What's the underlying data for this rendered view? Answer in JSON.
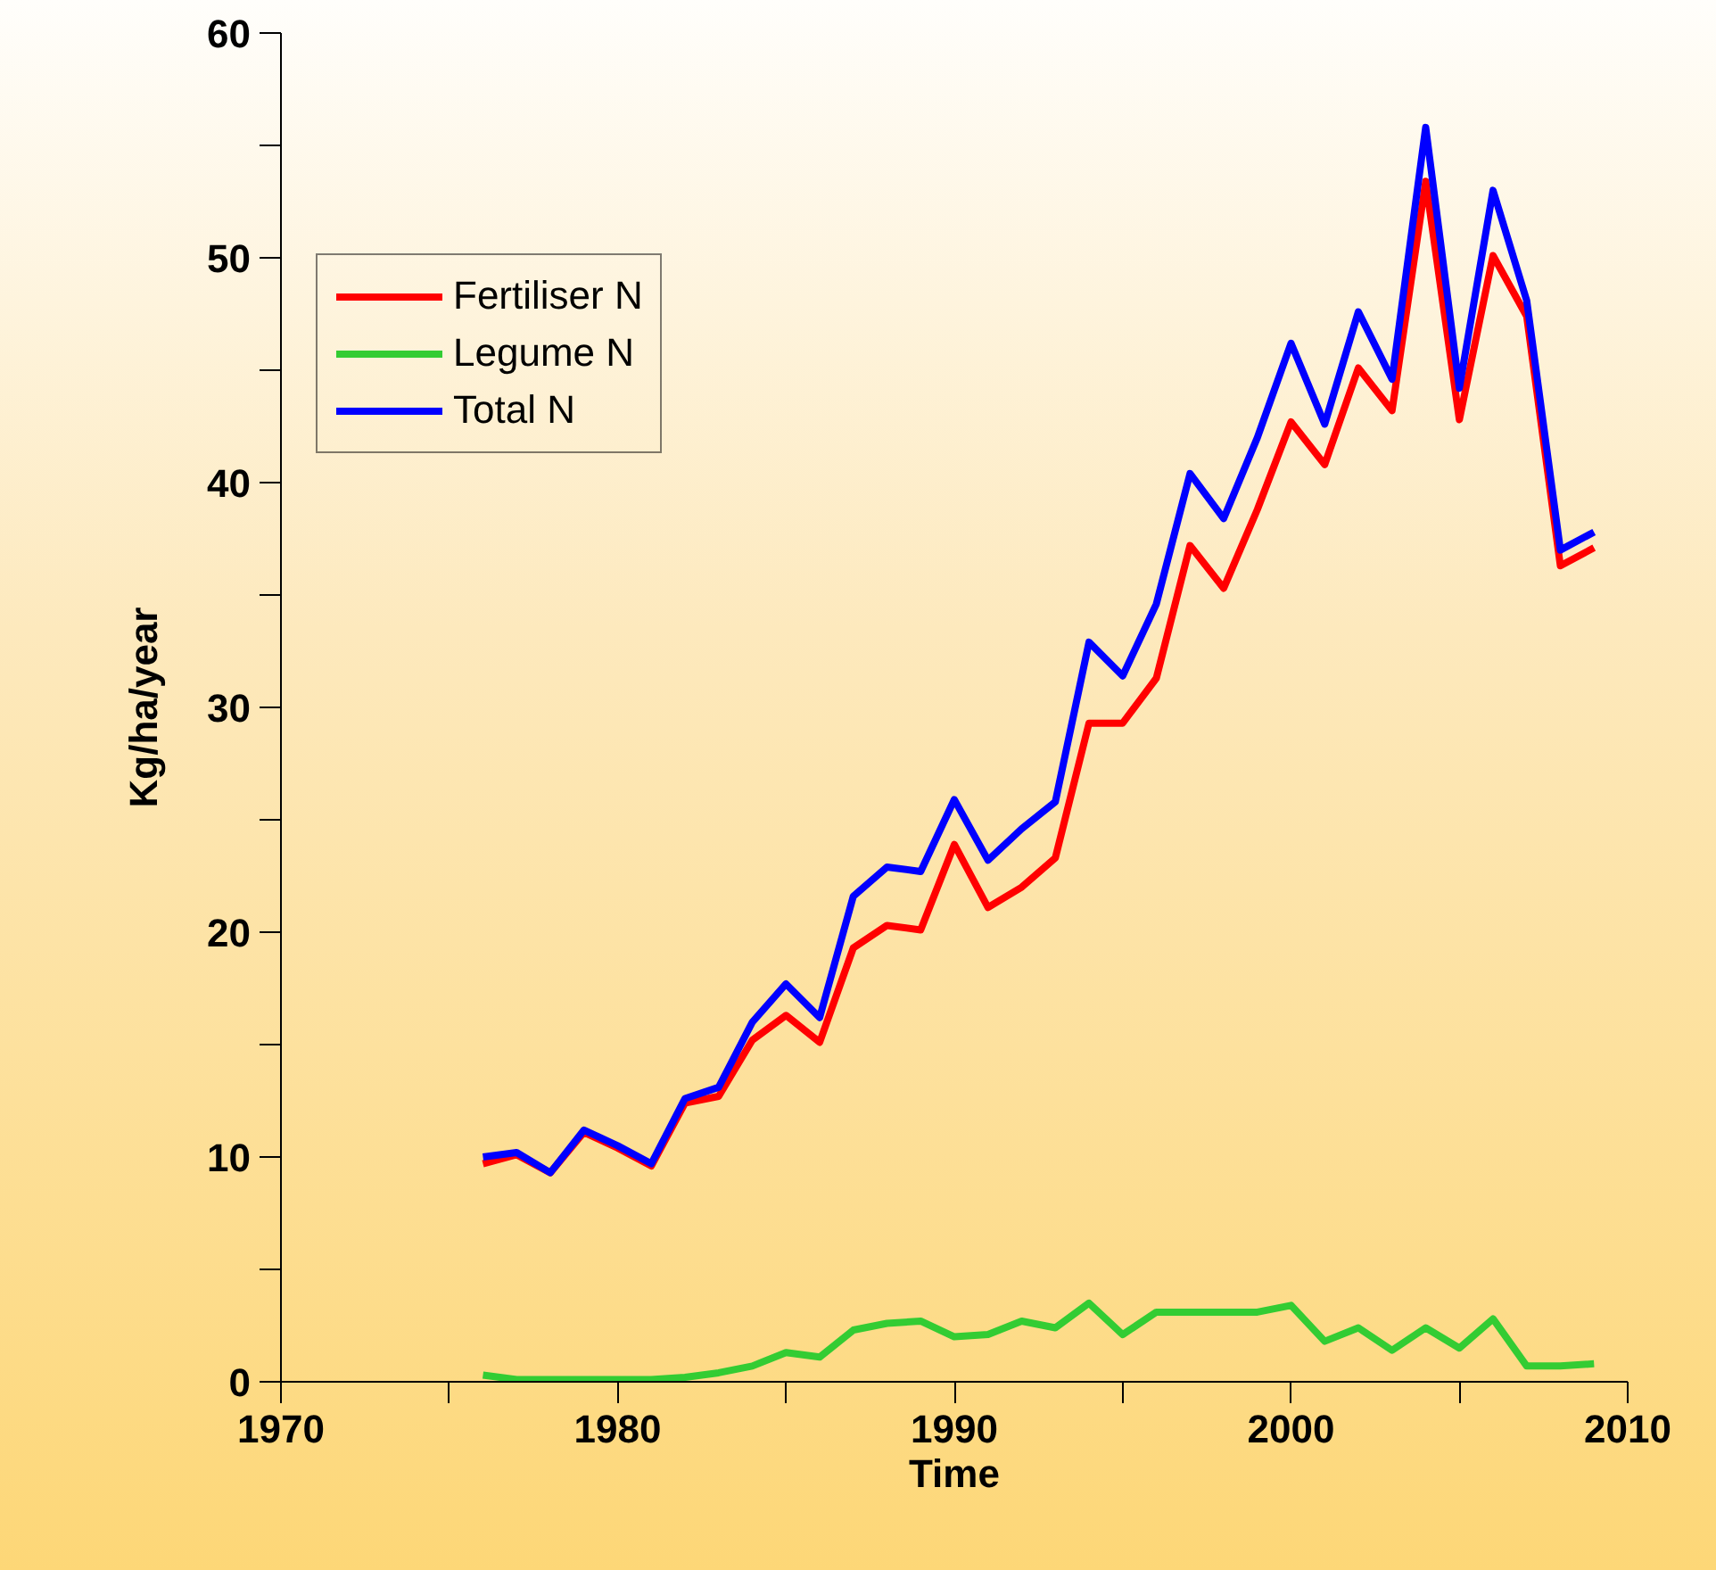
{
  "chart_data": {
    "type": "line",
    "xlabel": "Time",
    "ylabel": "Kg/ha/year",
    "x": [
      1976,
      1977,
      1978,
      1979,
      1980,
      1981,
      1982,
      1983,
      1984,
      1985,
      1986,
      1987,
      1988,
      1989,
      1990,
      1991,
      1992,
      1993,
      1994,
      1995,
      1996,
      1997,
      1998,
      1999,
      2000,
      2001,
      2002,
      2003,
      2004,
      2005,
      2006,
      2007,
      2008,
      2009
    ],
    "series": [
      {
        "name": "Fertiliser N",
        "color": "#ff0000",
        "values": [
          9.7,
          10.1,
          9.3,
          11.1,
          10.4,
          9.6,
          12.4,
          12.7,
          15.2,
          16.3,
          15.1,
          19.3,
          20.3,
          20.1,
          23.9,
          21.1,
          22.0,
          23.3,
          29.3,
          29.3,
          31.3,
          37.2,
          35.3,
          38.8,
          42.7,
          40.8,
          45.1,
          43.2,
          53.4,
          42.8,
          50.1,
          47.4,
          36.3,
          37.1
        ]
      },
      {
        "name": "Legume N",
        "color": "#33cc33",
        "values": [
          0.3,
          0.1,
          0.1,
          0.1,
          0.1,
          0.1,
          0.2,
          0.4,
          0.7,
          1.3,
          1.1,
          2.3,
          2.6,
          2.7,
          2.0,
          2.1,
          2.7,
          2.4,
          3.5,
          2.1,
          3.1,
          3.1,
          3.1,
          3.1,
          3.4,
          1.8,
          2.4,
          1.4,
          2.4,
          1.5,
          2.8,
          0.7,
          0.7,
          0.8
        ]
      },
      {
        "name": "Total N",
        "color": "#0000ff",
        "values": [
          10.0,
          10.2,
          9.3,
          11.2,
          10.5,
          9.7,
          12.6,
          13.1,
          16.0,
          17.7,
          16.2,
          21.6,
          22.9,
          22.7,
          25.9,
          23.2,
          24.6,
          25.8,
          32.9,
          31.4,
          34.6,
          40.4,
          38.4,
          42.0,
          46.2,
          42.6,
          47.6,
          44.6,
          55.8,
          44.2,
          53.0,
          48.1,
          37.0,
          37.8
        ]
      }
    ],
    "xlim": [
      1970,
      2010
    ],
    "xticks": [
      1970,
      {
        "value": 1975,
        "label": null
      },
      1980,
      {
        "value": 1985,
        "label": null
      },
      1990,
      {
        "value": 1995,
        "label": null
      },
      2000,
      {
        "value": 2005,
        "label": null
      },
      2010
    ],
    "ylim": [
      0,
      60
    ],
    "yticks": [
      0,
      {
        "value": 5,
        "label": null
      },
      10,
      {
        "value": 15,
        "label": null
      },
      20,
      {
        "value": 25,
        "label": null
      },
      30,
      {
        "value": 35,
        "label": null
      },
      40,
      {
        "value": 45,
        "label": null
      },
      50,
      {
        "value": 55,
        "label": null
      },
      60
    ],
    "legend": "top left",
    "grid": false,
    "marker": "none",
    "line_style": "solid"
  }
}
